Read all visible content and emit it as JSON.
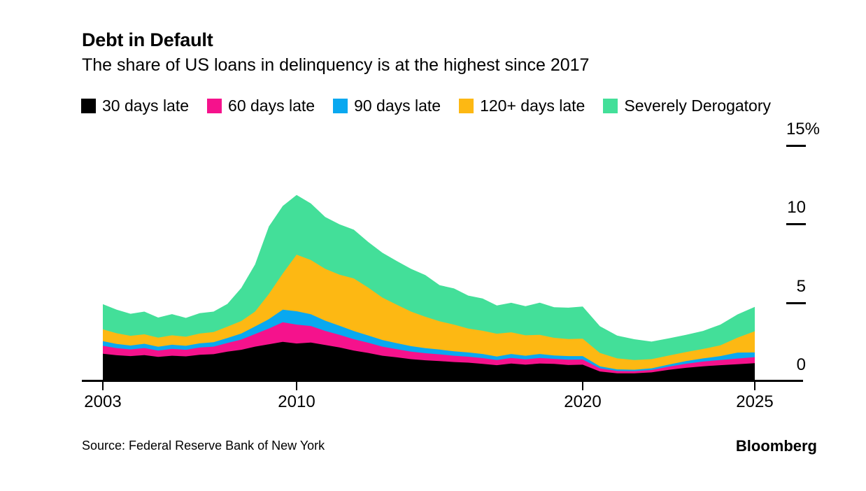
{
  "header": {
    "title": "Debt in Default",
    "subtitle": "The share of US loans in delinquency is at the highest since 2017"
  },
  "footer": {
    "source": "Source: Federal Reserve Bank of New York",
    "brand": "Bloomberg"
  },
  "chart_data": {
    "type": "area",
    "stacked": true,
    "title": "Debt in Default",
    "subtitle": "The share of US loans in delinquency is at the highest since 2017",
    "xlabel": "",
    "ylabel": "",
    "ylim": [
      0,
      15
    ],
    "grid": false,
    "legend_position": "top",
    "y_ticks": [
      {
        "value": 15,
        "label": "15%"
      },
      {
        "value": 10,
        "label": "10"
      },
      {
        "value": 5,
        "label": "5"
      },
      {
        "value": 0,
        "label": "0"
      }
    ],
    "x_ticks": [
      {
        "value": 2003,
        "label": "2003"
      },
      {
        "value": 2010,
        "label": "2010"
      },
      {
        "value": 2020,
        "label": "2020"
      },
      {
        "value": 2025,
        "label": "2025"
      }
    ],
    "x": [
      2003,
      2003.5,
      2004,
      2004.5,
      2005,
      2005.5,
      2006,
      2006.5,
      2007,
      2007.5,
      2008,
      2008.5,
      2009,
      2009.5,
      2010,
      2010.5,
      2011,
      2011.5,
      2012,
      2012.5,
      2013,
      2013.5,
      2014,
      2014.5,
      2015,
      2015.5,
      2016,
      2016.5,
      2017,
      2017.5,
      2018,
      2018.5,
      2019,
      2019.5,
      2020,
      2020.5,
      2021,
      2021.5,
      2022,
      2022.5,
      2023,
      2023.5,
      2024,
      2024.5,
      2025
    ],
    "series": [
      {
        "name": "30 days late",
        "color": "#000000",
        "values": [
          1.75,
          1.65,
          1.6,
          1.66,
          1.55,
          1.62,
          1.58,
          1.68,
          1.72,
          1.88,
          2.0,
          2.2,
          2.35,
          2.5,
          2.4,
          2.46,
          2.3,
          2.15,
          1.95,
          1.8,
          1.62,
          1.52,
          1.4,
          1.33,
          1.28,
          1.22,
          1.18,
          1.1,
          1.02,
          1.12,
          1.05,
          1.12,
          1.1,
          1.03,
          1.05,
          0.62,
          0.5,
          0.5,
          0.56,
          0.72,
          0.85,
          0.95,
          1.02,
          1.08,
          1.15
        ]
      },
      {
        "name": "60 days late",
        "color": "#f5128c",
        "values": [
          0.5,
          0.45,
          0.42,
          0.45,
          0.4,
          0.44,
          0.42,
          0.46,
          0.48,
          0.55,
          0.65,
          0.8,
          1.0,
          1.25,
          1.2,
          1.05,
          0.9,
          0.8,
          0.72,
          0.65,
          0.58,
          0.52,
          0.48,
          0.45,
          0.43,
          0.4,
          0.38,
          0.37,
          0.33,
          0.36,
          0.34,
          0.36,
          0.32,
          0.34,
          0.33,
          0.2,
          0.15,
          0.14,
          0.15,
          0.2,
          0.26,
          0.3,
          0.33,
          0.36,
          0.38
        ]
      },
      {
        "name": "90 days late",
        "color": "#09a8f0",
        "values": [
          0.3,
          0.27,
          0.25,
          0.27,
          0.24,
          0.26,
          0.25,
          0.27,
          0.28,
          0.32,
          0.38,
          0.48,
          0.6,
          0.8,
          0.85,
          0.75,
          0.65,
          0.58,
          0.52,
          0.46,
          0.42,
          0.38,
          0.35,
          0.32,
          0.3,
          0.28,
          0.27,
          0.26,
          0.22,
          0.25,
          0.23,
          0.25,
          0.22,
          0.23,
          0.22,
          0.13,
          0.1,
          0.09,
          0.11,
          0.14,
          0.17,
          0.2,
          0.25,
          0.38,
          0.3
        ]
      },
      {
        "name": "120+ days late",
        "color": "#fdb813",
        "values": [
          0.75,
          0.68,
          0.62,
          0.6,
          0.58,
          0.6,
          0.58,
          0.62,
          0.65,
          0.72,
          0.8,
          0.95,
          1.6,
          2.3,
          3.6,
          3.45,
          3.3,
          3.25,
          3.35,
          3.05,
          2.7,
          2.45,
          2.2,
          2.0,
          1.8,
          1.7,
          1.52,
          1.48,
          1.45,
          1.38,
          1.3,
          1.22,
          1.12,
          1.08,
          1.1,
          0.85,
          0.7,
          0.62,
          0.58,
          0.57,
          0.57,
          0.6,
          0.68,
          0.95,
          1.35
        ]
      },
      {
        "name": "Severely Derogatory",
        "color": "#43df99",
        "values": [
          1.6,
          1.5,
          1.4,
          1.45,
          1.28,
          1.35,
          1.2,
          1.3,
          1.3,
          1.45,
          2.1,
          3.0,
          4.3,
          4.3,
          3.8,
          3.6,
          3.3,
          3.2,
          3.1,
          2.9,
          2.85,
          2.78,
          2.72,
          2.65,
          2.3,
          2.3,
          2.1,
          2.05,
          1.8,
          1.88,
          1.85,
          2.05,
          1.95,
          2.0,
          2.05,
          1.7,
          1.45,
          1.32,
          1.12,
          1.1,
          1.1,
          1.15,
          1.32,
          1.48,
          1.55
        ]
      }
    ]
  }
}
